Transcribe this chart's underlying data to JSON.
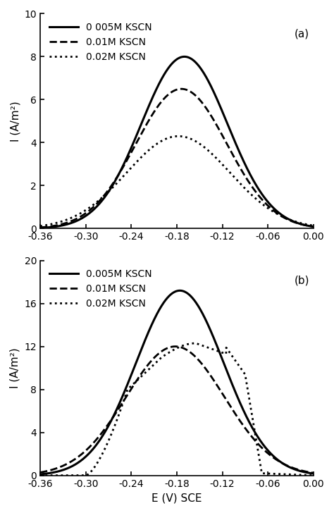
{
  "panel_a": {
    "label": "(a)",
    "xlabel": "",
    "ylabel": "I (A/m²)",
    "xlim": [
      -0.36,
      0.0
    ],
    "ylim": [
      0,
      10
    ],
    "yticks": [
      0,
      2,
      4,
      6,
      8,
      10
    ],
    "xticks": [
      -0.36,
      -0.3,
      -0.24,
      -0.18,
      -0.12,
      -0.06,
      0.0
    ],
    "legend": [
      "0 005M KSCN",
      "0.01M KSCN",
      "0.02M KSCN"
    ]
  },
  "panel_b": {
    "label": "(b)",
    "xlabel": "E (V) SCE",
    "ylabel": "I (A/m²)",
    "xlim": [
      -0.36,
      0.0
    ],
    "ylim": [
      0,
      20
    ],
    "yticks": [
      0,
      4,
      8,
      12,
      16,
      20
    ],
    "xticks": [
      -0.36,
      -0.3,
      -0.24,
      -0.18,
      -0.12,
      -0.06,
      0.0
    ],
    "legend": [
      "0.005M KSCN",
      "0.01M KSCN",
      "0.02M KSCN"
    ]
  },
  "background_color": "#ffffff",
  "line_color": "#000000"
}
